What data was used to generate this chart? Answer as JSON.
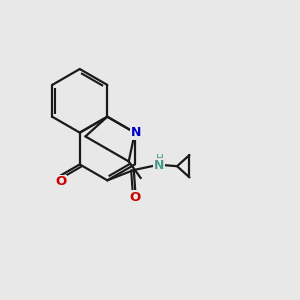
{
  "bg_color": "#e8e8e8",
  "bond_color": "#1a1a1a",
  "bond_width": 1.6,
  "N_color": "#0000cc",
  "O_color": "#cc0000",
  "NH_color": "#4a9a8a",
  "figsize": [
    3.0,
    3.0
  ],
  "dpi": 100,
  "xlim": [
    0,
    10
  ],
  "ylim": [
    0,
    10
  ]
}
